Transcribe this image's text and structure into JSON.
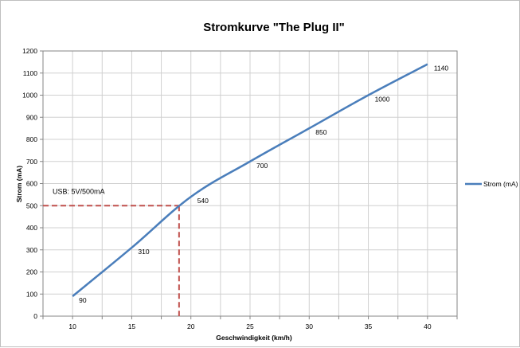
{
  "chart_data": {
    "type": "line",
    "title": "Stromkurve \"The Plug II\"",
    "xlabel": "Geschwindigkeit (km/h)",
    "ylabel": "Strom (mA)",
    "xlim": [
      7.5,
      42.5
    ],
    "ylim": [
      0,
      1200
    ],
    "xticks": [
      10,
      15,
      20,
      25,
      30,
      35,
      40
    ],
    "yticks": [
      0,
      100,
      200,
      300,
      400,
      500,
      600,
      700,
      800,
      900,
      1000,
      1100,
      1200
    ],
    "grid": true,
    "legend_position": "right",
    "series": [
      {
        "name": "Strom (mA)",
        "color": "#4a7ebb",
        "x": [
          10,
          15,
          20,
          25,
          30,
          35,
          40
        ],
        "y": [
          90,
          310,
          540,
          700,
          850,
          1000,
          1140
        ],
        "labels": [
          "90",
          "310",
          "540",
          "700",
          "850",
          "1000",
          "1140"
        ]
      }
    ],
    "annotation": {
      "text": "USB: 5V/500mA",
      "y_value": 500,
      "x_value": 19,
      "color": "#c0504d"
    }
  }
}
